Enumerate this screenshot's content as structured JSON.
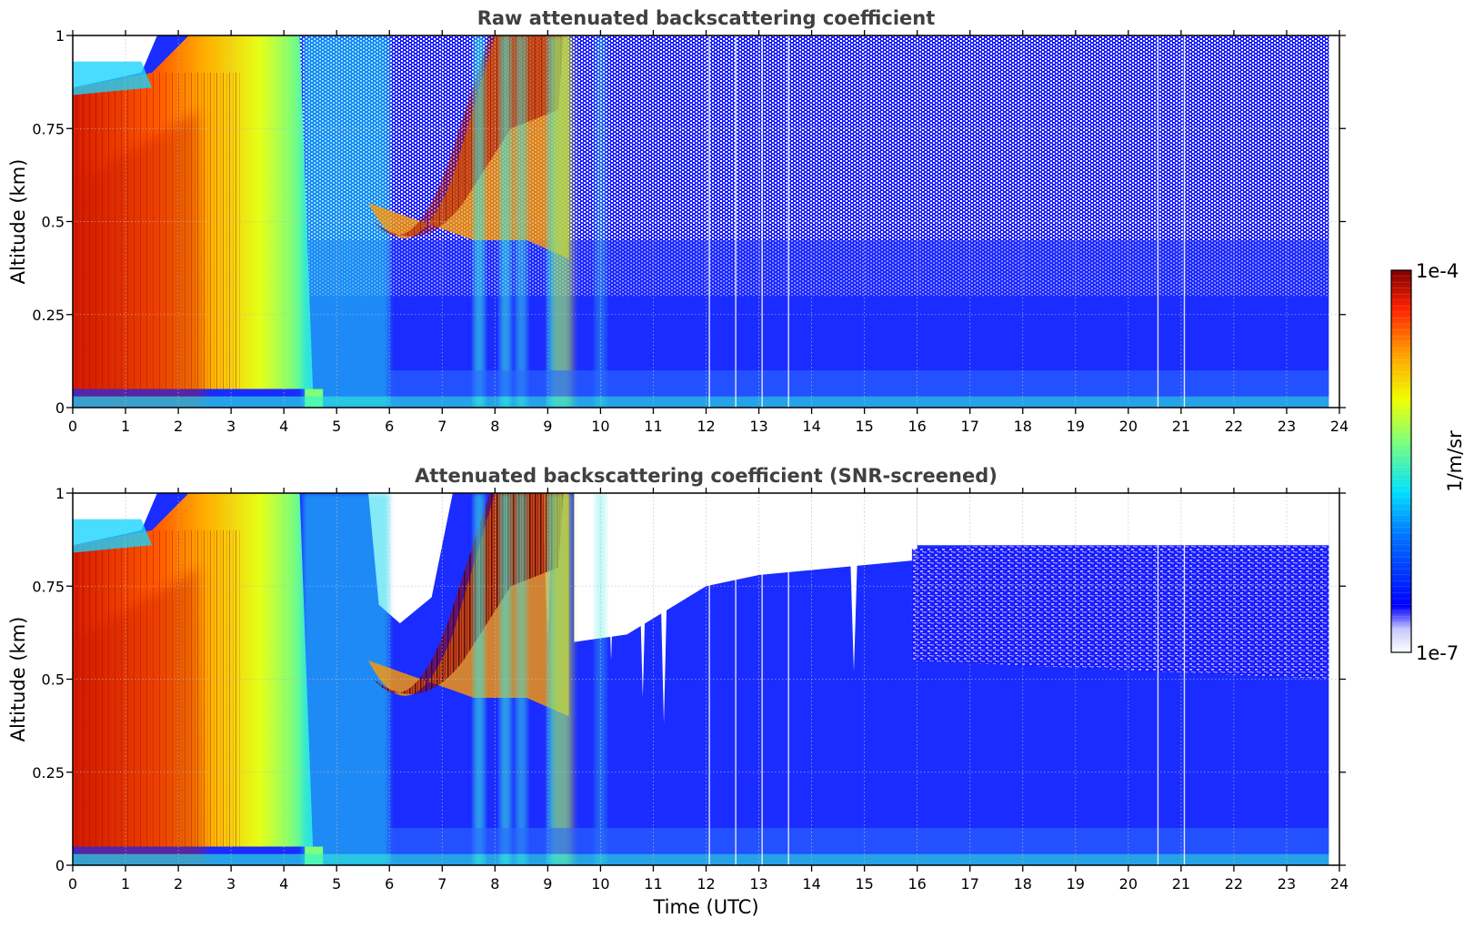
{
  "chart_data": [
    {
      "type": "heatmap",
      "title": "Raw attenuated backscattering coefficient",
      "xlabel": "",
      "ylabel": "Altitude (km)",
      "xlim": [
        0,
        24
      ],
      "ylim": [
        0,
        1
      ],
      "x_ticks": [
        0,
        1,
        2,
        3,
        4,
        5,
        6,
        7,
        8,
        9,
        10,
        11,
        12,
        13,
        14,
        15,
        16,
        17,
        18,
        19,
        20,
        21,
        22,
        23,
        24
      ],
      "y_ticks": [
        0,
        0.25,
        0.5,
        0.75,
        1
      ],
      "y_tick_labels": [
        "0",
        "0.25",
        "0.5",
        "0.75",
        "1"
      ],
      "grid": true,
      "screened": false,
      "scale": "log",
      "features": [
        {
          "kind": "aerosol/fog layer",
          "x_start": 0,
          "x_end": 4.5,
          "y_top": 1.0,
          "level": "high (red-yellow)"
        },
        {
          "kind": "elevated cloud layer",
          "x_start": 5.6,
          "x_end": 9.4,
          "y_base": 0.4,
          "y_top": 1.0,
          "level": "very high (dark red)"
        },
        {
          "kind": "clear/background",
          "x_start": 9.5,
          "x_end": 23.8,
          "level": "low (blue), noisy aloft"
        }
      ]
    },
    {
      "type": "heatmap",
      "title": "Attenuated backscattering coefficient (SNR-screened)",
      "xlabel": "Time (UTC)",
      "ylabel": "Altitude (km)",
      "xlim": [
        0,
        24
      ],
      "ylim": [
        0,
        1
      ],
      "x_ticks": [
        0,
        1,
        2,
        3,
        4,
        5,
        6,
        7,
        8,
        9,
        10,
        11,
        12,
        13,
        14,
        15,
        16,
        17,
        18,
        19,
        20,
        21,
        22,
        23,
        24
      ],
      "y_ticks": [
        0,
        0.25,
        0.5,
        0.75,
        1
      ],
      "y_tick_labels": [
        "0",
        "0.25",
        "0.5",
        "0.75",
        "1"
      ],
      "grid": true,
      "screened": true,
      "scale": "log",
      "features": [
        {
          "kind": "aerosol/fog layer",
          "x_start": 0,
          "x_end": 4.5,
          "y_top": 1.0,
          "level": "high (red-yellow)"
        },
        {
          "kind": "elevated cloud layer",
          "x_start": 5.6,
          "x_end": 9.4,
          "y_base": 0.4,
          "y_top": 1.0,
          "level": "very high (dark red/black)"
        },
        {
          "kind": "screened-out (white) region",
          "x_start": 9.5,
          "x_end": 16,
          "level": "removed above ~0.4-0.75 km"
        },
        {
          "kind": "low-signal (pale) region",
          "x_start": 16,
          "x_end": 23.8,
          "level": "very low above ~0.5 km"
        }
      ]
    }
  ],
  "colorbar": {
    "max_label": "1e-4",
    "min_label": "1e-7",
    "label": "1/m/sr",
    "colormap": "jet"
  }
}
